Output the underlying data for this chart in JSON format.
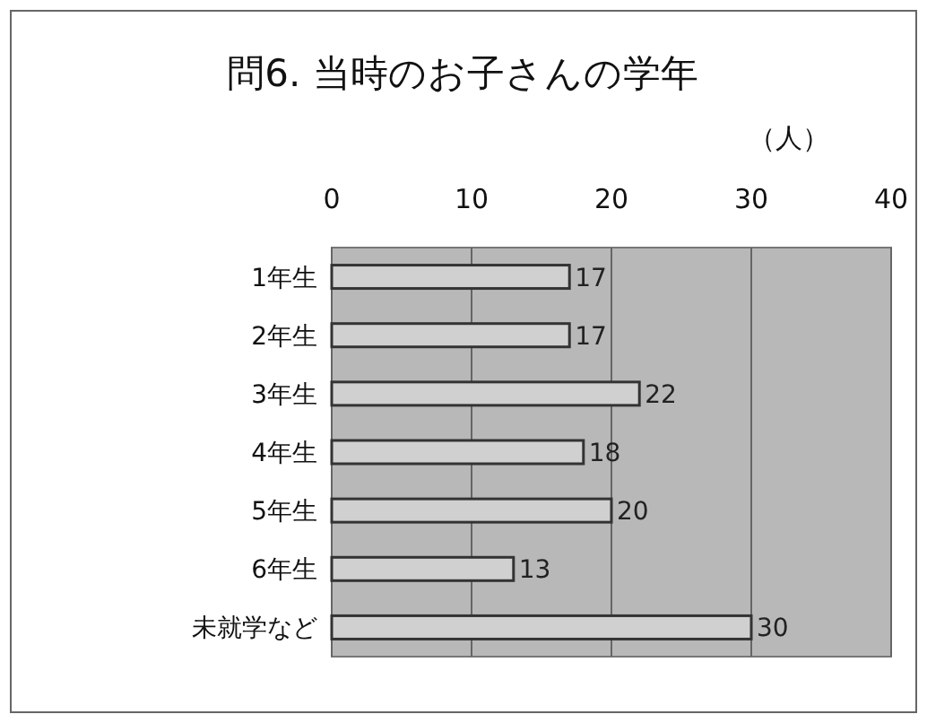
{
  "chart_data": {
    "type": "bar",
    "orientation": "horizontal",
    "title": "問6. 当時のお子さんの学年",
    "xlabel": "（人）",
    "categories": [
      "1年生",
      "2年生",
      "3年生",
      "4年生",
      "5年生",
      "6年生",
      "未就学など"
    ],
    "values": [
      17,
      17,
      22,
      18,
      20,
      13,
      30
    ],
    "color": "#d0d0d0",
    "xlim": [
      0,
      40
    ],
    "xticks": [
      0,
      10,
      20,
      30,
      40
    ],
    "grid": "x",
    "data_labels": true
  }
}
